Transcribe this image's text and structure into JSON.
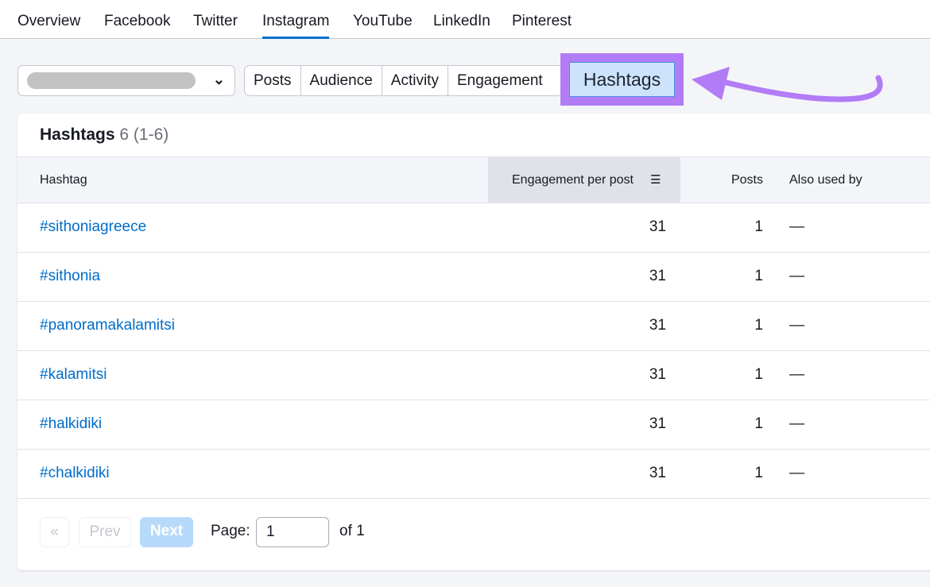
{
  "nav": {
    "tabs": [
      {
        "label": "Overview"
      },
      {
        "label": "Facebook"
      },
      {
        "label": "Twitter"
      },
      {
        "label": "Instagram",
        "active": true
      },
      {
        "label": "YouTube"
      },
      {
        "label": "LinkedIn"
      },
      {
        "label": "Pinterest"
      }
    ]
  },
  "toolbar": {
    "profile_select": {
      "value": "",
      "icon": "chevron-down-icon"
    },
    "segments": [
      "Posts",
      "Audience",
      "Activity",
      "Engagement"
    ],
    "active_segment": "Hashtags"
  },
  "colors": {
    "accent": "#006dca",
    "highlight": "#b17cf5",
    "active_bg": "#cde3fb"
  },
  "card": {
    "title": "Hashtags",
    "count": "6",
    "range": "(1-6)",
    "columns": [
      "Hashtag",
      "Engagement per post",
      "Posts",
      "Also used by"
    ],
    "rows": [
      {
        "hashtag": "#sithoniagreece",
        "engagement": "31",
        "posts": "1",
        "also": "—"
      },
      {
        "hashtag": "#sithonia",
        "engagement": "31",
        "posts": "1",
        "also": "—"
      },
      {
        "hashtag": "#panoramakalamitsi",
        "engagement": "31",
        "posts": "1",
        "also": "—"
      },
      {
        "hashtag": "#kalamitsi",
        "engagement": "31",
        "posts": "1",
        "also": "—"
      },
      {
        "hashtag": "#halkidiki",
        "engagement": "31",
        "posts": "1",
        "also": "—"
      },
      {
        "hashtag": "#chalkidiki",
        "engagement": "31",
        "posts": "1",
        "also": "—"
      }
    ]
  },
  "pagination": {
    "first": "«",
    "prev": "Prev",
    "next": "Next",
    "page_label": "Page:",
    "page_value": "1",
    "of": "of 1"
  }
}
